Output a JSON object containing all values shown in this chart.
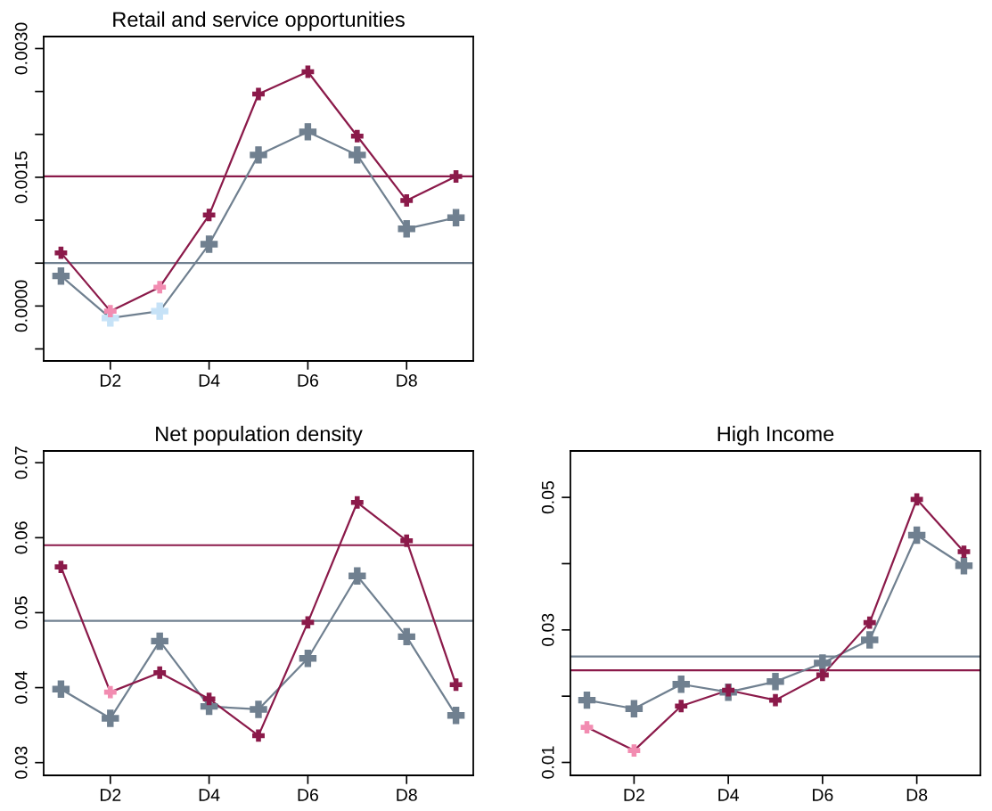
{
  "chart_data": [
    {
      "type": "line",
      "title": "Retail and service opportunities",
      "categories": [
        null,
        "D2",
        null,
        "D4",
        null,
        "D6",
        null,
        "D8",
        null
      ],
      "marker": "cross",
      "line_style": "solid",
      "grid": false,
      "legend": false,
      "ylim": [
        -0.00064,
        0.00314
      ],
      "yticks": [
        {
          "value": -0.0005,
          "label": null
        },
        {
          "value": 0,
          "label": "0.0000"
        },
        {
          "value": 0.0005,
          "label": null
        },
        {
          "value": 0.001,
          "label": null
        },
        {
          "value": 0.0015,
          "label": "0.0015"
        },
        {
          "value": 0.002,
          "label": null
        },
        {
          "value": 0.0025,
          "label": null
        },
        {
          "value": 0.003,
          "label": "0.0030"
        }
      ],
      "series": [
        {
          "color": "#708090",
          "colors": [
            "#708090",
            "#c6e2f7",
            "#c6e2f7",
            "#708090",
            "#708090",
            "#708090",
            "#708090",
            "#708090",
            "#708090"
          ],
          "values": [
            0.00035,
            -0.00014,
            -6e-05,
            0.00072,
            0.00176,
            0.00203,
            0.00176,
            0.0009,
            0.00103
          ]
        },
        {
          "color": "#8b1a4a",
          "colors": [
            "#8b1a4a",
            "#f28cb1",
            "#f28cb1",
            "#8b1a4a",
            "#8b1a4a",
            "#8b1a4a",
            "#8b1a4a",
            "#8b1a4a",
            "#8b1a4a"
          ],
          "values": [
            0.00062,
            -6e-05,
            0.00022,
            0.00106,
            0.00247,
            0.00273,
            0.00198,
            0.00123,
            0.00151
          ]
        }
      ],
      "ref_lines": [
        {
          "axis": "y",
          "value": 0.00151,
          "color": "#8b1a4a"
        },
        {
          "axis": "y",
          "value": 0.0005,
          "color": "#708090"
        }
      ]
    },
    {
      "type": "line",
      "title": "Net population density",
      "categories": [
        null,
        "D2",
        null,
        "D4",
        null,
        "D6",
        null,
        "D8",
        null
      ],
      "marker": "cross",
      "line_style": "solid",
      "grid": false,
      "legend": false,
      "ylim": [
        0.0283,
        0.07157
      ],
      "yticks": [
        0.03,
        0.04,
        0.05,
        0.06,
        0.07
      ],
      "series": [
        {
          "color": "#708090",
          "values": [
            0.0398,
            0.0359,
            0.0462,
            0.0375,
            0.0371,
            0.0439,
            0.0549,
            0.0468,
            0.0363
          ]
        },
        {
          "color": "#8b1a4a",
          "colors": [
            "#8b1a4a",
            "#f28cb1",
            "#8b1a4a",
            "#8b1a4a",
            "#8b1a4a",
            "#8b1a4a",
            "#8b1a4a",
            "#8b1a4a",
            "#8b1a4a"
          ],
          "values": [
            0.0561,
            0.0394,
            0.042,
            0.0385,
            0.0336,
            0.0487,
            0.0647,
            0.0596,
            0.0404
          ]
        }
      ],
      "ref_lines": [
        {
          "axis": "y",
          "value": 0.059,
          "color": "#8b1a4a"
        },
        {
          "axis": "y",
          "value": 0.0489,
          "color": "#708090"
        }
      ]
    },
    {
      "type": "line",
      "title": "High Income",
      "categories": [
        null,
        "D2",
        null,
        "D4",
        null,
        "D6",
        null,
        "D8",
        null
      ],
      "marker": "cross",
      "line_style": "solid",
      "grid": false,
      "legend": false,
      "ylim": [
        0.00805,
        0.05701
      ],
      "yticks": [
        0.01,
        {
          "value": 0.02,
          "label": null
        },
        0.03,
        {
          "value": 0.04,
          "label": null
        },
        0.05
      ],
      "series": [
        {
          "color": "#708090",
          "values": [
            0.0194,
            0.0181,
            0.0218,
            0.0206,
            0.0222,
            0.025,
            0.0285,
            0.0443,
            0.0397
          ]
        },
        {
          "color": "#8b1a4a",
          "colors": [
            "#f28cb1",
            "#f28cb1",
            "#8b1a4a",
            "#8b1a4a",
            "#8b1a4a",
            "#8b1a4a",
            "#8b1a4a",
            "#8b1a4a",
            "#8b1a4a"
          ],
          "values": [
            0.0153,
            0.0118,
            0.0185,
            0.0209,
            0.0194,
            0.0232,
            0.0311,
            0.0497,
            0.0418
          ]
        }
      ],
      "ref_lines": [
        {
          "axis": "y",
          "value": 0.026,
          "color": "#708090"
        },
        {
          "axis": "y",
          "value": 0.0239,
          "color": "#8b1a4a"
        }
      ]
    }
  ]
}
